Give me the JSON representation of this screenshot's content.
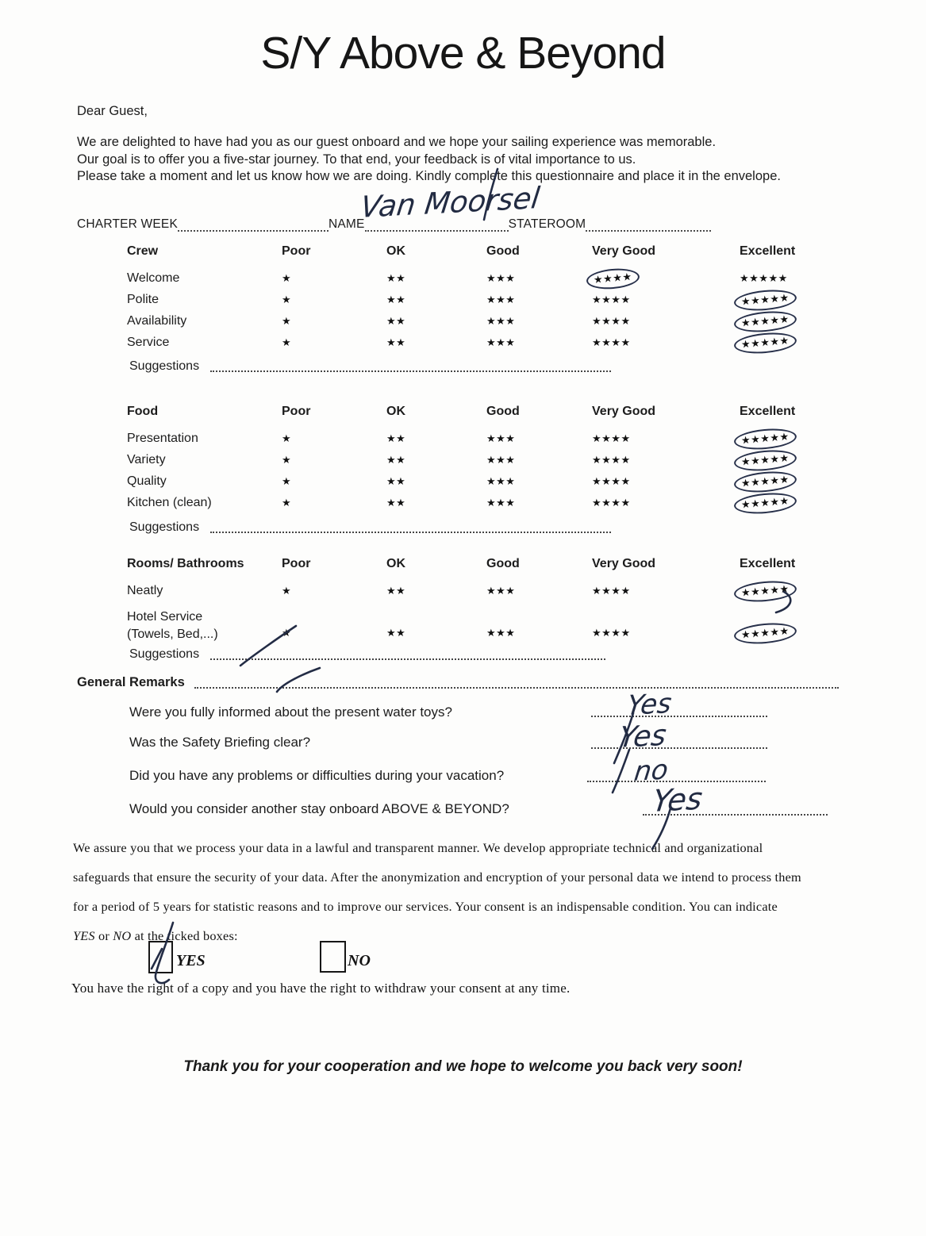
{
  "header": {
    "title": "S/Y Above & Beyond"
  },
  "intro": {
    "greeting": "Dear Guest,",
    "lines": [
      "We are delighted to have had you as our guest onboard and we hope your sailing experience was memorable.",
      "Our goal is to offer you a five-star journey. To that end, your feedback is of vital importance to us.",
      "Please take a moment and let us know how we are doing. Kindly complete this questionnaire and place it in the envelope."
    ]
  },
  "fields": {
    "charter_week_label": "CHARTER WEEK",
    "charter_week_value": "",
    "name_label": "NAME",
    "name_value": "Van Moorsel",
    "stateroom_label": "STATEROOM",
    "stateroom_value": ""
  },
  "rating_scale": [
    "Poor",
    "OK",
    "Good",
    "Very Good",
    "Excellent"
  ],
  "star_glyph": "★",
  "sections": [
    {
      "title": "Crew",
      "suggestions_label": "Suggestions",
      "suggestions_value": "",
      "rows": [
        {
          "label": "Welcome",
          "selected": "Very Good"
        },
        {
          "label": "Polite",
          "selected": "Excellent"
        },
        {
          "label": "Availability",
          "selected": "Excellent"
        },
        {
          "label": "Service",
          "selected": "Excellent"
        }
      ]
    },
    {
      "title": "Food",
      "suggestions_label": "Suggestions",
      "suggestions_value": "",
      "rows": [
        {
          "label": "Presentation",
          "selected": "Excellent"
        },
        {
          "label": "Variety",
          "selected": "Excellent"
        },
        {
          "label": "Quality",
          "selected": "Excellent"
        },
        {
          "label": "Kitchen (clean)",
          "selected": "Excellent"
        }
      ]
    },
    {
      "title": "Rooms/ Bathrooms",
      "suggestions_label": "Suggestions",
      "suggestions_value": "",
      "rows": [
        {
          "label": "Neatly",
          "selected": "Excellent"
        },
        {
          "label": "Hotel Service",
          "label_line2": "(Towels, Bed,...)",
          "selected": "Excellent"
        }
      ]
    }
  ],
  "general_remarks": {
    "label": "General Remarks",
    "value": ""
  },
  "questions": [
    {
      "text": "Were you fully informed about the present water toys?",
      "answer": "Yes"
    },
    {
      "text": "Was the Safety Briefing clear?",
      "answer": "Yes"
    },
    {
      "text": "Did you have any problems or difficulties during your vacation?",
      "answer": "no"
    },
    {
      "text": "Would you consider another stay onboard ABOVE & BEYOND?",
      "answer": "Yes"
    }
  ],
  "consent": {
    "lines": [
      "We assure you that we process your data in a lawful and transparent manner. We develop appropriate technical and organizational",
      "safeguards that ensure the security of your data. After the anonymization and encryption of your personal data we intend to process them",
      "for a period of 5 years for statistic reasons and to improve our services. Your consent is an indispensable condition. You can indicate"
    ],
    "last_line": {
      "yes_word": "YES",
      "mid": " or ",
      "no_word": "NO",
      "tail": " at the ticked boxes:"
    },
    "checkboxes": [
      {
        "label": "YES",
        "checked": true
      },
      {
        "label": "NO",
        "checked": false
      }
    ],
    "rights_line": "You have the right of a copy and you have the right to withdraw your consent at any time."
  },
  "closing": "Thank you for your cooperation and we hope to welcome you back very soon!",
  "ink_color": "#232c45"
}
